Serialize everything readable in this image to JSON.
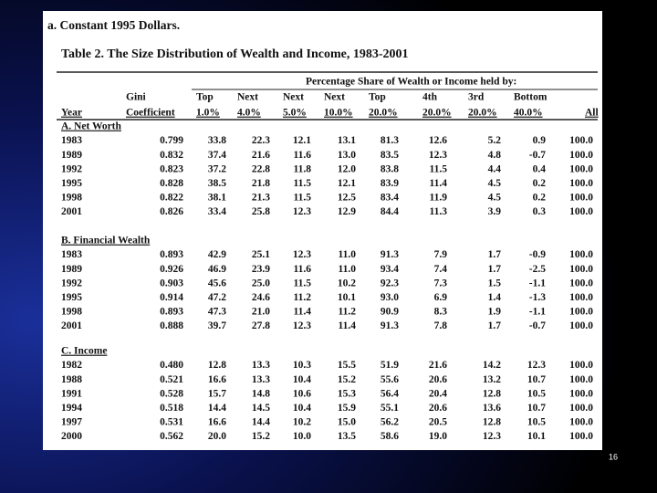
{
  "caption": "a.  Constant 1995 Dollars.",
  "table": {
    "title": "Table 2. The Size Distribution of Wealth and Income, 1983-2001",
    "group_header": "Percentage Share of Wealth or Income held by:",
    "columns": [
      {
        "bottom": "Year"
      },
      {
        "top": "Gini",
        "bottom": "Coefficient"
      },
      {
        "top": "Top",
        "bottom": "1.0%"
      },
      {
        "top": "Next",
        "bottom": "4.0%"
      },
      {
        "top": "Next",
        "bottom": "5.0%"
      },
      {
        "top": "Next",
        "bottom": "10.0%"
      },
      {
        "top": "Top",
        "bottom": "20.0%"
      },
      {
        "top": "4th",
        "bottom": "20.0%"
      },
      {
        "top": "3rd",
        "bottom": "20.0%"
      },
      {
        "top": "Bottom",
        "bottom": "40.0%"
      },
      {
        "bottom": "All"
      }
    ],
    "sections": [
      {
        "label": "A. Net Worth",
        "rows": [
          [
            "1983",
            "0.799",
            "33.8",
            "22.3",
            "12.1",
            "13.1",
            "81.3",
            "12.6",
            "5.2",
            "0.9",
            "100.0"
          ],
          [
            "1989",
            "0.832",
            "37.4",
            "21.6",
            "11.6",
            "13.0",
            "83.5",
            "12.3",
            "4.8",
            "-0.7",
            "100.0"
          ],
          [
            "1992",
            "0.823",
            "37.2",
            "22.8",
            "11.8",
            "12.0",
            "83.8",
            "11.5",
            "4.4",
            "0.4",
            "100.0"
          ],
          [
            "1995",
            "0.828",
            "38.5",
            "21.8",
            "11.5",
            "12.1",
            "83.9",
            "11.4",
            "4.5",
            "0.2",
            "100.0"
          ],
          [
            "1998",
            "0.822",
            "38.1",
            "21.3",
            "11.5",
            "12.5",
            "83.4",
            "11.9",
            "4.5",
            "0.2",
            "100.0"
          ],
          [
            "2001",
            "0.826",
            "33.4",
            "25.8",
            "12.3",
            "12.9",
            "84.4",
            "11.3",
            "3.9",
            "0.3",
            "100.0"
          ]
        ]
      },
      {
        "label": "B. Financial Wealth",
        "rows": [
          [
            "1983",
            "0.893",
            "42.9",
            "25.1",
            "12.3",
            "11.0",
            "91.3",
            "7.9",
            "1.7",
            "-0.9",
            "100.0"
          ],
          [
            "1989",
            "0.926",
            "46.9",
            "23.9",
            "11.6",
            "11.0",
            "93.4",
            "7.4",
            "1.7",
            "-2.5",
            "100.0"
          ],
          [
            "1992",
            "0.903",
            "45.6",
            "25.0",
            "11.5",
            "10.2",
            "92.3",
            "7.3",
            "1.5",
            "-1.1",
            "100.0"
          ],
          [
            "1995",
            "0.914",
            "47.2",
            "24.6",
            "11.2",
            "10.1",
            "93.0",
            "6.9",
            "1.4",
            "-1.3",
            "100.0"
          ],
          [
            "1998",
            "0.893",
            "47.3",
            "21.0",
            "11.4",
            "11.2",
            "90.9",
            "8.3",
            "1.9",
            "-1.1",
            "100.0"
          ],
          [
            "2001",
            "0.888",
            "39.7",
            "27.8",
            "12.3",
            "11.4",
            "91.3",
            "7.8",
            "1.7",
            "-0.7",
            "100.0"
          ]
        ]
      },
      {
        "label": "C. Income",
        "rows": [
          [
            "1982",
            "0.480",
            "12.8",
            "13.3",
            "10.3",
            "15.5",
            "51.9",
            "21.6",
            "14.2",
            "12.3",
            "100.0"
          ],
          [
            "1988",
            "0.521",
            "16.6",
            "13.3",
            "10.4",
            "15.2",
            "55.6",
            "20.6",
            "13.2",
            "10.7",
            "100.0"
          ],
          [
            "1991",
            "0.528",
            "15.7",
            "14.8",
            "10.6",
            "15.3",
            "56.4",
            "20.4",
            "12.8",
            "10.5",
            "100.0"
          ],
          [
            "1994",
            "0.518",
            "14.4",
            "14.5",
            "10.4",
            "15.9",
            "55.1",
            "20.6",
            "13.6",
            "10.7",
            "100.0"
          ],
          [
            "1997",
            "0.531",
            "16.6",
            "14.4",
            "10.2",
            "15.0",
            "56.2",
            "20.5",
            "12.8",
            "10.5",
            "100.0"
          ],
          [
            "2000",
            "0.562",
            "20.0",
            "15.2",
            "10.0",
            "13.5",
            "58.6",
            "19.0",
            "12.3",
            "10.1",
            "100.0"
          ]
        ]
      }
    ]
  },
  "slide_number": "16"
}
